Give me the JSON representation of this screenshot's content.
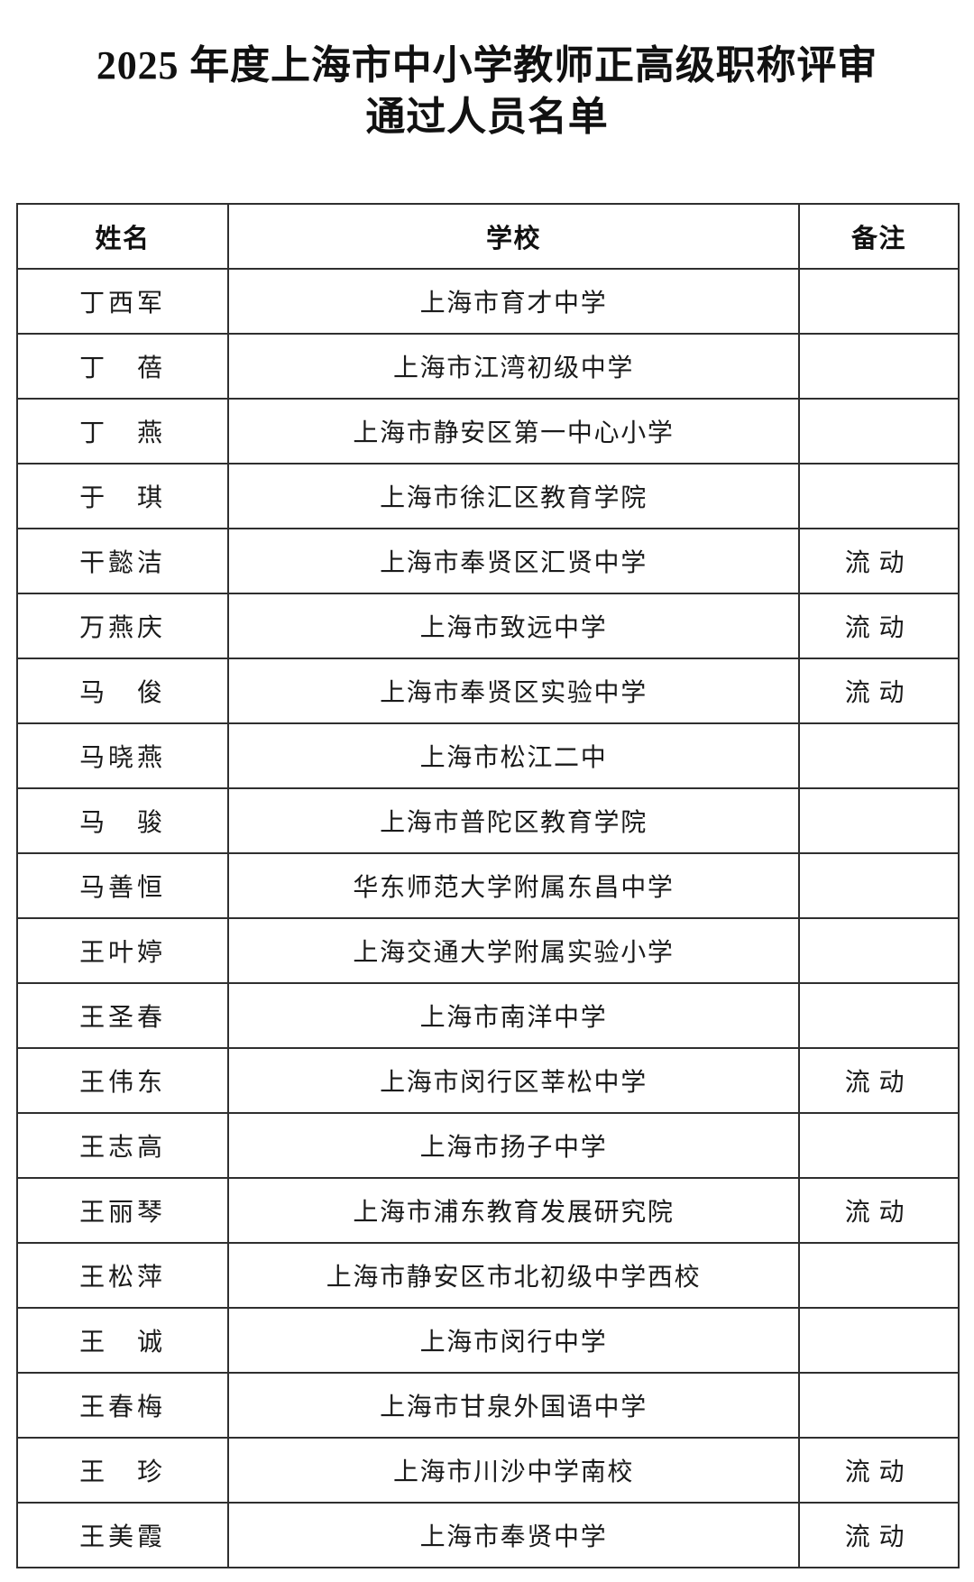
{
  "title": {
    "line1": "2025 年度上海市中小学教师正高级职称评审",
    "line2": "通过人员名单"
  },
  "table": {
    "headers": [
      "姓名",
      "学校",
      "备注"
    ],
    "rows": [
      {
        "name": "丁西军",
        "school": "上海市育才中学",
        "remark": ""
      },
      {
        "name": "丁　蓓",
        "school": "上海市江湾初级中学",
        "remark": ""
      },
      {
        "name": "丁　燕",
        "school": "上海市静安区第一中心小学",
        "remark": ""
      },
      {
        "name": "于　琪",
        "school": "上海市徐汇区教育学院",
        "remark": ""
      },
      {
        "name": "干懿洁",
        "school": "上海市奉贤区汇贤中学",
        "remark": "流动"
      },
      {
        "name": "万燕庆",
        "school": "上海市致远中学",
        "remark": "流动"
      },
      {
        "name": "马　俊",
        "school": "上海市奉贤区实验中学",
        "remark": "流动"
      },
      {
        "name": "马晓燕",
        "school": "上海市松江二中",
        "remark": ""
      },
      {
        "name": "马　骏",
        "school": "上海市普陀区教育学院",
        "remark": ""
      },
      {
        "name": "马善恒",
        "school": "华东师范大学附属东昌中学",
        "remark": ""
      },
      {
        "name": "王叶婷",
        "school": "上海交通大学附属实验小学",
        "remark": ""
      },
      {
        "name": "王圣春",
        "school": "上海市南洋中学",
        "remark": ""
      },
      {
        "name": "王伟东",
        "school": "上海市闵行区莘松中学",
        "remark": "流动"
      },
      {
        "name": "王志高",
        "school": "上海市扬子中学",
        "remark": ""
      },
      {
        "name": "王丽琴",
        "school": "上海市浦东教育发展研究院",
        "remark": "流动"
      },
      {
        "name": "王松萍",
        "school": "上海市静安区市北初级中学西校",
        "remark": ""
      },
      {
        "name": "王　诚",
        "school": "上海市闵行中学",
        "remark": ""
      },
      {
        "name": "王春梅",
        "school": "上海市甘泉外国语中学",
        "remark": ""
      },
      {
        "name": "王　珍",
        "school": "上海市川沙中学南校",
        "remark": "流动"
      },
      {
        "name": "王美霞",
        "school": "上海市奉贤中学",
        "remark": "流动"
      }
    ]
  },
  "colors": {
    "background": "#ffffff",
    "text": "#1a1a1a",
    "border": "#2f2f2f"
  }
}
